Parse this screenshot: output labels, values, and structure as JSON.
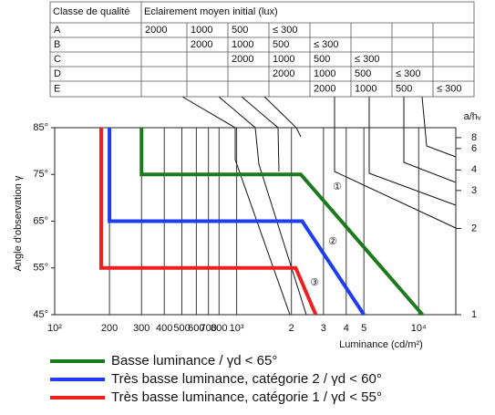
{
  "table": {
    "header": [
      "Classe de qualité",
      "Eclairement moyen initial (lux)"
    ],
    "rows": [
      [
        "A",
        "2000",
        "1000",
        "500",
        "≤ 300",
        null,
        null,
        null,
        null
      ],
      [
        "B",
        null,
        "2000",
        "1000",
        "500",
        "≤ 300",
        null,
        null,
        null
      ],
      [
        "C",
        null,
        null,
        "2000",
        "1000",
        "500",
        "≤ 300",
        null,
        null
      ],
      [
        "D",
        null,
        null,
        null,
        "2000",
        "1000",
        "500",
        "≤ 300",
        null
      ],
      [
        "E",
        null,
        null,
        null,
        null,
        "2000",
        "1000",
        "500",
        "≤ 300"
      ]
    ]
  },
  "chart_data": {
    "type": "line",
    "y_label": "Angle d'observation γ",
    "x_label": "Luminance (cd/m²)",
    "y2_label": "a/hᵥ",
    "x_log": true,
    "y2_scale": "arctan",
    "xlim": [
      100,
      16000
    ],
    "xticks": [
      {
        "value": 100,
        "label": "10²"
      },
      200,
      300,
      400,
      500,
      600,
      700,
      800,
      {
        "value": 1000,
        "label": "10³"
      },
      {
        "value": 2000,
        "label": "2"
      },
      {
        "value": 3000,
        "label": "3"
      },
      {
        "value": 4000,
        "label": "4"
      },
      {
        "value": 5000,
        "label": "5"
      },
      {
        "value": 10000,
        "label": "10⁴"
      }
    ],
    "ylim": [
      45,
      85
    ],
    "yticks": [
      {
        "value": 45,
        "label": "45°"
      },
      {
        "value": 55,
        "label": "55°"
      },
      {
        "value": 65,
        "label": "65°"
      },
      {
        "value": 75,
        "label": "75°"
      },
      {
        "value": 85,
        "label": "85°"
      }
    ],
    "y2lim": [
      1,
      11.43
    ],
    "y2ticks": [
      1,
      2,
      3,
      4,
      6,
      8
    ],
    "annotations": [
      "①",
      "②",
      "③"
    ],
    "series": [
      {
        "name": "Basse luminance / γd < 65°",
        "color": "#1b7a1b",
        "x": [
          300,
          300,
          2250,
          10500
        ],
        "values": [
          85,
          75,
          75,
          45
        ]
      },
      {
        "name": "Très basse luminance, catégorie 2 / γd < 60°",
        "color": "#1e3cf0",
        "x": [
          200,
          200,
          2290,
          5000
        ],
        "values": [
          85,
          65,
          65,
          45
        ]
      },
      {
        "name": "Très basse luminance, catégorie 1 / γd < 55°",
        "color": "#f01e1e",
        "x": [
          180,
          180,
          2110,
          2720
        ],
        "values": [
          85,
          55,
          55,
          45
        ]
      }
    ]
  }
}
